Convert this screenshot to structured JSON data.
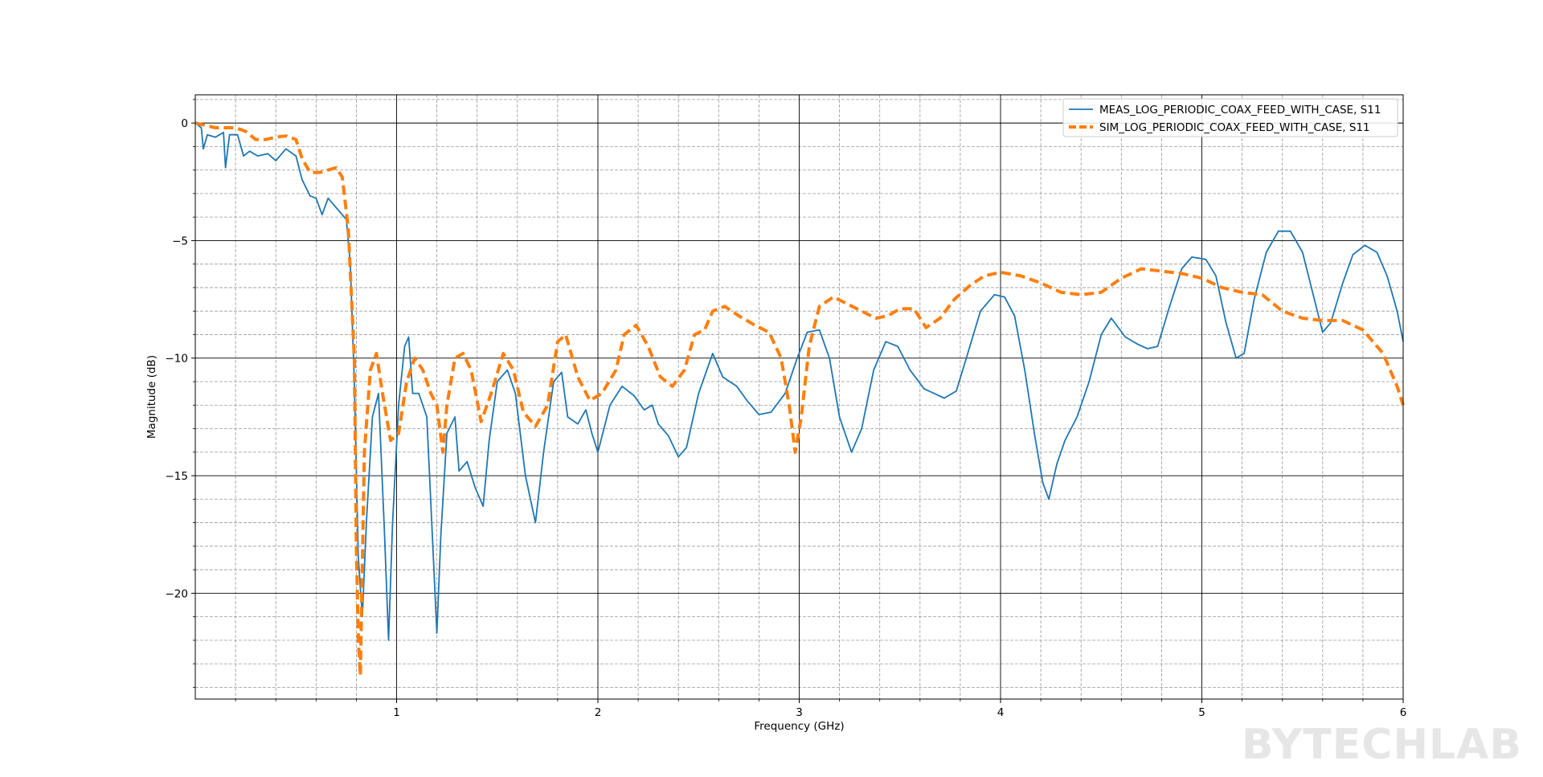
{
  "watermark": "BYTECHLAB",
  "chart_data": {
    "type": "line",
    "title": "",
    "xlabel": "Frequency (GHz)",
    "ylabel": "Magnitude (dB)",
    "xlim": [
      0,
      6
    ],
    "ylim": [
      -24.5,
      1.2
    ],
    "x_major_ticks": [
      1,
      2,
      3,
      4,
      5,
      6
    ],
    "x_tick_labels": [
      "1",
      "2",
      "3",
      "4",
      "5",
      "6"
    ],
    "y_major_ticks": [
      0,
      -5,
      -10,
      -15,
      -20
    ],
    "y_tick_labels": [
      "0",
      "−5",
      "−10",
      "−15",
      "−20"
    ],
    "x_minor_step": 0.2,
    "y_minor_step": 1,
    "grid": "major solid, minor dashed",
    "legend_position": "top-right",
    "series": [
      {
        "name": "MEAS_LOG_PERIODIC_COAX_FEED_WITH_CASE, S11",
        "color": "#1f77b4",
        "style": "solid",
        "points": [
          [
            0.0,
            0.0
          ],
          [
            0.03,
            -0.2
          ],
          [
            0.04,
            -1.1
          ],
          [
            0.06,
            -0.5
          ],
          [
            0.1,
            -0.6
          ],
          [
            0.14,
            -0.4
          ],
          [
            0.15,
            -1.9
          ],
          [
            0.17,
            -0.5
          ],
          [
            0.21,
            -0.5
          ],
          [
            0.24,
            -1.4
          ],
          [
            0.27,
            -1.2
          ],
          [
            0.31,
            -1.4
          ],
          [
            0.36,
            -1.3
          ],
          [
            0.4,
            -1.6
          ],
          [
            0.45,
            -1.1
          ],
          [
            0.5,
            -1.4
          ],
          [
            0.53,
            -2.4
          ],
          [
            0.57,
            -3.1
          ],
          [
            0.6,
            -3.2
          ],
          [
            0.63,
            -3.9
          ],
          [
            0.66,
            -3.2
          ],
          [
            0.7,
            -3.6
          ],
          [
            0.75,
            -4.1
          ],
          [
            0.77,
            -6.0
          ],
          [
            0.79,
            -11.0
          ],
          [
            0.81,
            -18.5
          ],
          [
            0.83,
            -21.0
          ],
          [
            0.85,
            -17.0
          ],
          [
            0.88,
            -12.5
          ],
          [
            0.91,
            -11.5
          ],
          [
            0.94,
            -17.5
          ],
          [
            0.96,
            -22.0
          ],
          [
            0.98,
            -17.0
          ],
          [
            1.01,
            -12.0
          ],
          [
            1.04,
            -9.5
          ],
          [
            1.06,
            -9.1
          ],
          [
            1.08,
            -11.5
          ],
          [
            1.11,
            -11.5
          ],
          [
            1.15,
            -12.5
          ],
          [
            1.18,
            -18.0
          ],
          [
            1.2,
            -21.7
          ],
          [
            1.22,
            -17.5
          ],
          [
            1.25,
            -13.2
          ],
          [
            1.29,
            -12.5
          ],
          [
            1.31,
            -14.8
          ],
          [
            1.35,
            -14.4
          ],
          [
            1.39,
            -15.5
          ],
          [
            1.43,
            -16.3
          ],
          [
            1.46,
            -13.5
          ],
          [
            1.5,
            -11.0
          ],
          [
            1.55,
            -10.5
          ],
          [
            1.59,
            -11.5
          ],
          [
            1.64,
            -15.0
          ],
          [
            1.69,
            -17.0
          ],
          [
            1.73,
            -14.0
          ],
          [
            1.78,
            -11.0
          ],
          [
            1.82,
            -10.6
          ],
          [
            1.85,
            -12.5
          ],
          [
            1.9,
            -12.8
          ],
          [
            1.94,
            -12.2
          ],
          [
            1.97,
            -13.2
          ],
          [
            2.0,
            -14.0
          ],
          [
            2.06,
            -12.0
          ],
          [
            2.12,
            -11.2
          ],
          [
            2.18,
            -11.6
          ],
          [
            2.23,
            -12.2
          ],
          [
            2.27,
            -12.0
          ],
          [
            2.3,
            -12.8
          ],
          [
            2.35,
            -13.3
          ],
          [
            2.4,
            -14.2
          ],
          [
            2.44,
            -13.8
          ],
          [
            2.5,
            -11.5
          ],
          [
            2.57,
            -9.8
          ],
          [
            2.62,
            -10.8
          ],
          [
            2.69,
            -11.2
          ],
          [
            2.74,
            -11.8
          ],
          [
            2.8,
            -12.4
          ],
          [
            2.86,
            -12.3
          ],
          [
            2.93,
            -11.5
          ],
          [
            2.99,
            -10.0
          ],
          [
            3.04,
            -8.9
          ],
          [
            3.1,
            -8.8
          ],
          [
            3.15,
            -10.0
          ],
          [
            3.2,
            -12.5
          ],
          [
            3.26,
            -14.0
          ],
          [
            3.31,
            -13.0
          ],
          [
            3.37,
            -10.5
          ],
          [
            3.43,
            -9.3
          ],
          [
            3.49,
            -9.5
          ],
          [
            3.55,
            -10.5
          ],
          [
            3.62,
            -11.3
          ],
          [
            3.67,
            -11.5
          ],
          [
            3.72,
            -11.7
          ],
          [
            3.78,
            -11.4
          ],
          [
            3.83,
            -10.0
          ],
          [
            3.9,
            -8.0
          ],
          [
            3.97,
            -7.3
          ],
          [
            4.02,
            -7.4
          ],
          [
            4.07,
            -8.2
          ],
          [
            4.12,
            -10.5
          ],
          [
            4.17,
            -13.3
          ],
          [
            4.21,
            -15.3
          ],
          [
            4.24,
            -16.0
          ],
          [
            4.28,
            -14.5
          ],
          [
            4.32,
            -13.5
          ],
          [
            4.38,
            -12.5
          ],
          [
            4.44,
            -11.0
          ],
          [
            4.5,
            -9.0
          ],
          [
            4.55,
            -8.3
          ],
          [
            4.62,
            -9.1
          ],
          [
            4.68,
            -9.4
          ],
          [
            4.73,
            -9.6
          ],
          [
            4.78,
            -9.5
          ],
          [
            4.84,
            -7.8
          ],
          [
            4.9,
            -6.2
          ],
          [
            4.95,
            -5.7
          ],
          [
            5.02,
            -5.8
          ],
          [
            5.07,
            -6.5
          ],
          [
            5.12,
            -8.5
          ],
          [
            5.17,
            -10.0
          ],
          [
            5.21,
            -9.8
          ],
          [
            5.26,
            -7.5
          ],
          [
            5.32,
            -5.5
          ],
          [
            5.38,
            -4.6
          ],
          [
            5.44,
            -4.6
          ],
          [
            5.5,
            -5.5
          ],
          [
            5.55,
            -7.2
          ],
          [
            5.6,
            -8.9
          ],
          [
            5.64,
            -8.5
          ],
          [
            5.7,
            -6.8
          ],
          [
            5.75,
            -5.6
          ],
          [
            5.81,
            -5.2
          ],
          [
            5.87,
            -5.5
          ],
          [
            5.92,
            -6.5
          ],
          [
            5.97,
            -8.0
          ],
          [
            6.0,
            -9.3
          ]
        ]
      },
      {
        "name": "SIM_LOG_PERIODIC_COAX_FEED_WITH_CASE, S11",
        "color": "#ff7f0e",
        "style": "dashed",
        "points": [
          [
            0.0,
            0.0
          ],
          [
            0.05,
            -0.1
          ],
          [
            0.1,
            -0.2
          ],
          [
            0.2,
            -0.2
          ],
          [
            0.25,
            -0.35
          ],
          [
            0.3,
            -0.7
          ],
          [
            0.35,
            -0.7
          ],
          [
            0.4,
            -0.6
          ],
          [
            0.45,
            -0.55
          ],
          [
            0.5,
            -0.7
          ],
          [
            0.53,
            -1.5
          ],
          [
            0.57,
            -2.1
          ],
          [
            0.62,
            -2.1
          ],
          [
            0.66,
            -2.0
          ],
          [
            0.7,
            -1.9
          ],
          [
            0.73,
            -2.3
          ],
          [
            0.76,
            -4.5
          ],
          [
            0.79,
            -10.0
          ],
          [
            0.8,
            -18.0
          ],
          [
            0.81,
            -22.0
          ],
          [
            0.82,
            -23.5
          ],
          [
            0.84,
            -14.0
          ],
          [
            0.87,
            -10.5
          ],
          [
            0.9,
            -9.8
          ],
          [
            0.93,
            -11.5
          ],
          [
            0.97,
            -13.5
          ],
          [
            1.01,
            -13.2
          ],
          [
            1.05,
            -11.0
          ],
          [
            1.09,
            -10.0
          ],
          [
            1.13,
            -10.5
          ],
          [
            1.17,
            -11.5
          ],
          [
            1.2,
            -12.0
          ],
          [
            1.23,
            -14.0
          ],
          [
            1.25,
            -12.0
          ],
          [
            1.29,
            -10.0
          ],
          [
            1.33,
            -9.8
          ],
          [
            1.37,
            -10.5
          ],
          [
            1.42,
            -12.7
          ],
          [
            1.47,
            -11.5
          ],
          [
            1.53,
            -9.8
          ],
          [
            1.58,
            -10.5
          ],
          [
            1.63,
            -12.3
          ],
          [
            1.69,
            -12.9
          ],
          [
            1.75,
            -12.0
          ],
          [
            1.8,
            -9.3
          ],
          [
            1.84,
            -9.0
          ],
          [
            1.9,
            -10.8
          ],
          [
            1.96,
            -11.8
          ],
          [
            2.02,
            -11.5
          ],
          [
            2.09,
            -10.5
          ],
          [
            2.13,
            -9.0
          ],
          [
            2.19,
            -8.6
          ],
          [
            2.25,
            -9.5
          ],
          [
            2.31,
            -10.8
          ],
          [
            2.37,
            -11.2
          ],
          [
            2.43,
            -10.5
          ],
          [
            2.48,
            -9.0
          ],
          [
            2.53,
            -8.8
          ],
          [
            2.57,
            -8.0
          ],
          [
            2.63,
            -7.8
          ],
          [
            2.7,
            -8.2
          ],
          [
            2.78,
            -8.6
          ],
          [
            2.85,
            -8.9
          ],
          [
            2.91,
            -10.0
          ],
          [
            2.95,
            -12.0
          ],
          [
            2.98,
            -14.0
          ],
          [
            3.01,
            -12.5
          ],
          [
            3.05,
            -9.5
          ],
          [
            3.1,
            -7.8
          ],
          [
            3.17,
            -7.4
          ],
          [
            3.24,
            -7.7
          ],
          [
            3.31,
            -8.0
          ],
          [
            3.38,
            -8.3
          ],
          [
            3.44,
            -8.2
          ],
          [
            3.5,
            -7.9
          ],
          [
            3.57,
            -7.9
          ],
          [
            3.63,
            -8.7
          ],
          [
            3.7,
            -8.3
          ],
          [
            3.77,
            -7.5
          ],
          [
            3.85,
            -6.9
          ],
          [
            3.92,
            -6.5
          ],
          [
            4.0,
            -6.35
          ],
          [
            4.1,
            -6.5
          ],
          [
            4.2,
            -6.8
          ],
          [
            4.3,
            -7.2
          ],
          [
            4.4,
            -7.3
          ],
          [
            4.5,
            -7.2
          ],
          [
            4.6,
            -6.6
          ],
          [
            4.7,
            -6.2
          ],
          [
            4.8,
            -6.3
          ],
          [
            4.9,
            -6.4
          ],
          [
            5.0,
            -6.6
          ],
          [
            5.1,
            -7.0
          ],
          [
            5.2,
            -7.2
          ],
          [
            5.3,
            -7.3
          ],
          [
            5.4,
            -8.0
          ],
          [
            5.5,
            -8.3
          ],
          [
            5.6,
            -8.4
          ],
          [
            5.7,
            -8.4
          ],
          [
            5.8,
            -8.8
          ],
          [
            5.9,
            -9.8
          ],
          [
            5.97,
            -11.2
          ],
          [
            6.0,
            -12.0
          ]
        ]
      }
    ]
  }
}
